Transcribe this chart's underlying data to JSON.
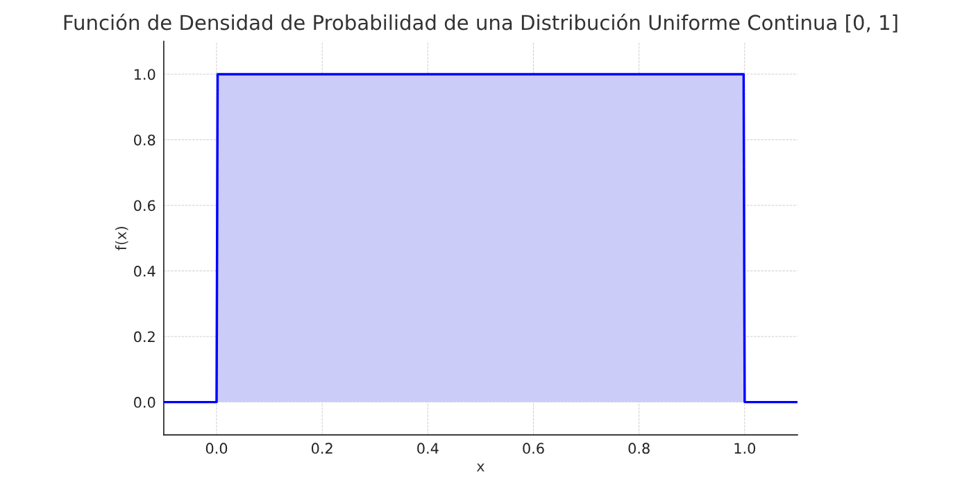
{
  "chart_data": {
    "type": "line",
    "title": "Función de Densidad de Probabilidad de una Distribución Uniforme Continua [0, 1]",
    "xlabel": "x",
    "ylabel": "f(x)",
    "series": [
      {
        "type": "area",
        "color": "#ccccf9",
        "x": [
          0,
          1
        ],
        "values": [
          1,
          1
        ]
      },
      {
        "color": "#0000ff",
        "x": [
          -0.1,
          0,
          0.002,
          0.998,
          1,
          1.1
        ],
        "values": [
          0,
          0,
          1,
          1,
          0,
          0
        ]
      }
    ],
    "xlim": [
      -0.1,
      1.1
    ],
    "ylim": [
      -0.1,
      1.1
    ],
    "xticks": [
      {
        "value": 0,
        "label": "0.0"
      },
      0.2,
      0.4,
      0.6,
      0.8,
      {
        "value": 1,
        "label": "1.0"
      }
    ],
    "yticks": [
      {
        "value": 0,
        "label": "0.0"
      },
      0.2,
      0.4,
      0.6,
      0.8,
      {
        "value": 1,
        "label": "1.0"
      }
    ],
    "grid": true,
    "line_style": "solid"
  }
}
